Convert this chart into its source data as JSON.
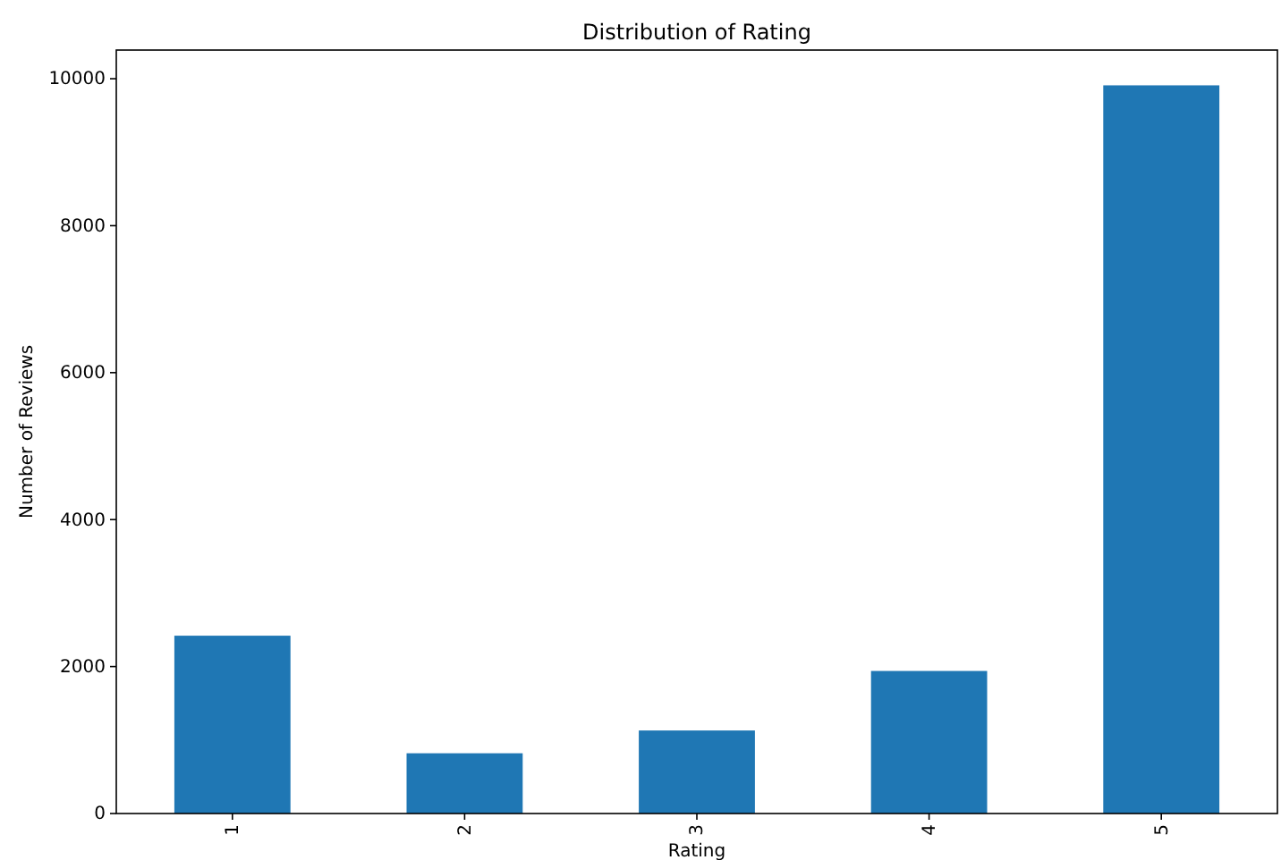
{
  "chart_data": {
    "type": "bar",
    "title": "Distribution of Rating",
    "xlabel": "Rating",
    "ylabel": "Number of Reviews",
    "categories": [
      "1",
      "2",
      "3",
      "4",
      "5"
    ],
    "values": [
      2420,
      820,
      1130,
      1940,
      9910
    ],
    "color": "#1f77b4",
    "ylim": [
      0,
      10390
    ],
    "yticks": [
      0,
      2000,
      4000,
      6000,
      8000,
      10000
    ],
    "grid": false
  }
}
